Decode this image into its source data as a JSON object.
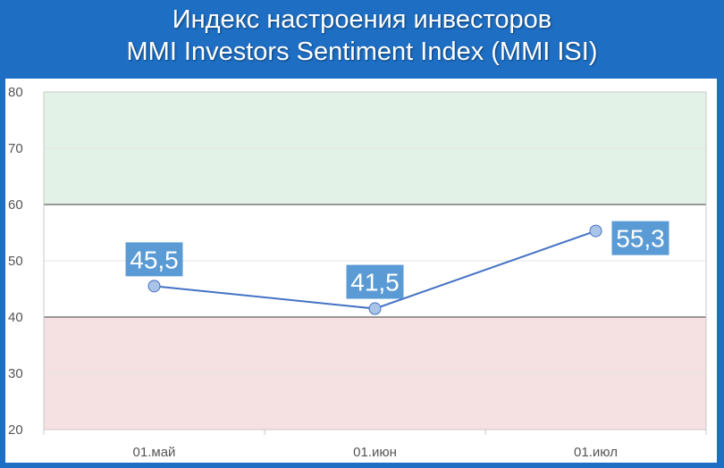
{
  "title": {
    "line1": "Индекс настроения инвесторов",
    "line2": "MMI Investors Sentiment Index (MMI ISI)"
  },
  "chart_data": {
    "type": "line",
    "title": "Индекс настроения инвесторов / MMI Investors Sentiment Index (MMI ISI)",
    "xlabel": "",
    "ylabel": "",
    "categories": [
      "01.май",
      "01.июн",
      "01.июл"
    ],
    "series": [
      {
        "values": [
          45.5,
          41.5,
          55.3
        ],
        "data_labels": [
          "45,5",
          "41,5",
          "55,3"
        ],
        "color": "#4472c4"
      }
    ],
    "ylim": [
      20,
      80
    ],
    "yticks": [
      "20",
      "30",
      "40",
      "50",
      "60",
      "70",
      "80"
    ],
    "bands": [
      {
        "from": 60,
        "to": 80,
        "color": "#e2f2e6"
      },
      {
        "from": 20,
        "to": 40,
        "color": "#f6e1e2"
      }
    ],
    "grid": true,
    "legend": "none"
  },
  "colors": {
    "frame": "#1e6fc4",
    "line": "#4472c4",
    "marker_fill": "#aac4e8",
    "label_bg": "#5b9bd5",
    "positive_band": "#e2f2e6",
    "negative_band": "#f6e1e2"
  }
}
